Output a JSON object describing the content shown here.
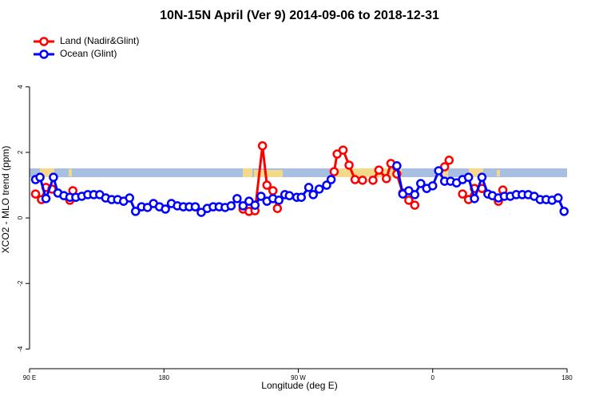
{
  "chart_data": {
    "type": "line",
    "title": "10N-15N April (Ver 9)   2014-09-06 to 2018-12-31",
    "x_label": "Longitude (deg E)",
    "y_label": "XCO2 - MLO trend (ppm)",
    "xlim": [
      90,
      450
    ],
    "ylim": [
      -4.6,
      5.7
    ],
    "xticks": [
      {
        "value": 90,
        "label": "90 E"
      },
      {
        "value": 180,
        "label": "180"
      },
      {
        "value": 270,
        "label": "90 W"
      },
      {
        "value": 360,
        "label": "0"
      },
      {
        "value": 450,
        "label": "180"
      }
    ],
    "yticks": [
      -4,
      -2,
      0,
      2,
      4
    ],
    "legend": "top-left",
    "series": [
      {
        "name": "Land (Nadir&Glint)",
        "color": "#ff0000",
        "x": [
          94,
          98,
          101,
          105,
          110,
          117,
          119,
          200,
          233,
          237,
          241,
          246,
          249,
          253,
          256,
          270,
          294,
          296,
          300,
          304,
          308,
          313,
          318,
          320,
          324,
          329,
          332,
          336,
          340,
          344,
          348,
          355,
          368,
          371,
          375,
          380,
          384,
          388,
          393,
          398,
          404,
          407
        ],
        "values": [
          0.73,
          0.56,
          0.93,
          0.88,
          null,
          0.54,
          0.83,
          null,
          0.27,
          0.2,
          0.22,
          2.2,
          1.0,
          0.83,
          0.29,
          null,
          1.41,
          1.95,
          2.07,
          1.61,
          1.17,
          1.15,
          null,
          1.15,
          1.46,
          1.2,
          1.66,
          1.34,
          0.76,
          0.54,
          0.39,
          null,
          1.56,
          1.76,
          null,
          0.73,
          0.56,
          0.9,
          0.9,
          null,
          0.51,
          0.85
        ]
      },
      {
        "name": "Ocean (Glint)",
        "color": "#0000ff",
        "x": [
          94,
          97,
          101,
          106,
          109,
          113,
          117,
          121,
          125,
          129,
          133,
          137,
          141,
          145,
          149,
          153,
          157,
          161,
          165,
          169,
          173,
          177,
          181,
          185,
          189,
          193,
          197,
          201,
          205,
          209,
          213,
          217,
          221,
          225,
          229,
          233,
          237,
          241,
          245,
          249,
          253,
          257,
          261,
          264,
          269,
          272,
          277,
          280,
          284,
          289,
          292,
          314,
          336,
          340,
          344,
          348,
          352,
          356,
          360,
          364,
          368,
          372,
          376,
          380,
          384,
          388,
          393,
          397,
          400,
          404,
          408,
          412,
          416,
          420,
          424,
          428,
          432,
          436,
          440,
          444,
          448
        ],
        "values": [
          1.17,
          1.24,
          0.59,
          1.24,
          0.76,
          0.68,
          0.63,
          0.63,
          0.66,
          0.71,
          0.71,
          0.71,
          0.61,
          0.56,
          0.56,
          0.51,
          0.61,
          0.2,
          0.34,
          0.32,
          0.44,
          0.34,
          0.27,
          0.44,
          0.37,
          0.34,
          0.34,
          0.34,
          0.17,
          0.29,
          0.34,
          0.34,
          0.32,
          0.37,
          0.59,
          0.37,
          0.51,
          0.39,
          0.66,
          0.51,
          0.59,
          0.54,
          0.71,
          0.68,
          0.63,
          0.63,
          0.93,
          0.71,
          0.88,
          1.0,
          1.17,
          null,
          1.59,
          0.73,
          0.83,
          0.71,
          1.05,
          0.9,
          0.98,
          1.44,
          1.12,
          1.12,
          1.07,
          1.17,
          1.24,
          0.59,
          1.24,
          0.73,
          0.68,
          0.61,
          0.66,
          0.66,
          0.71,
          0.71,
          0.71,
          0.66,
          0.56,
          0.56,
          0.54,
          0.61,
          0.2
        ]
      }
    ]
  }
}
